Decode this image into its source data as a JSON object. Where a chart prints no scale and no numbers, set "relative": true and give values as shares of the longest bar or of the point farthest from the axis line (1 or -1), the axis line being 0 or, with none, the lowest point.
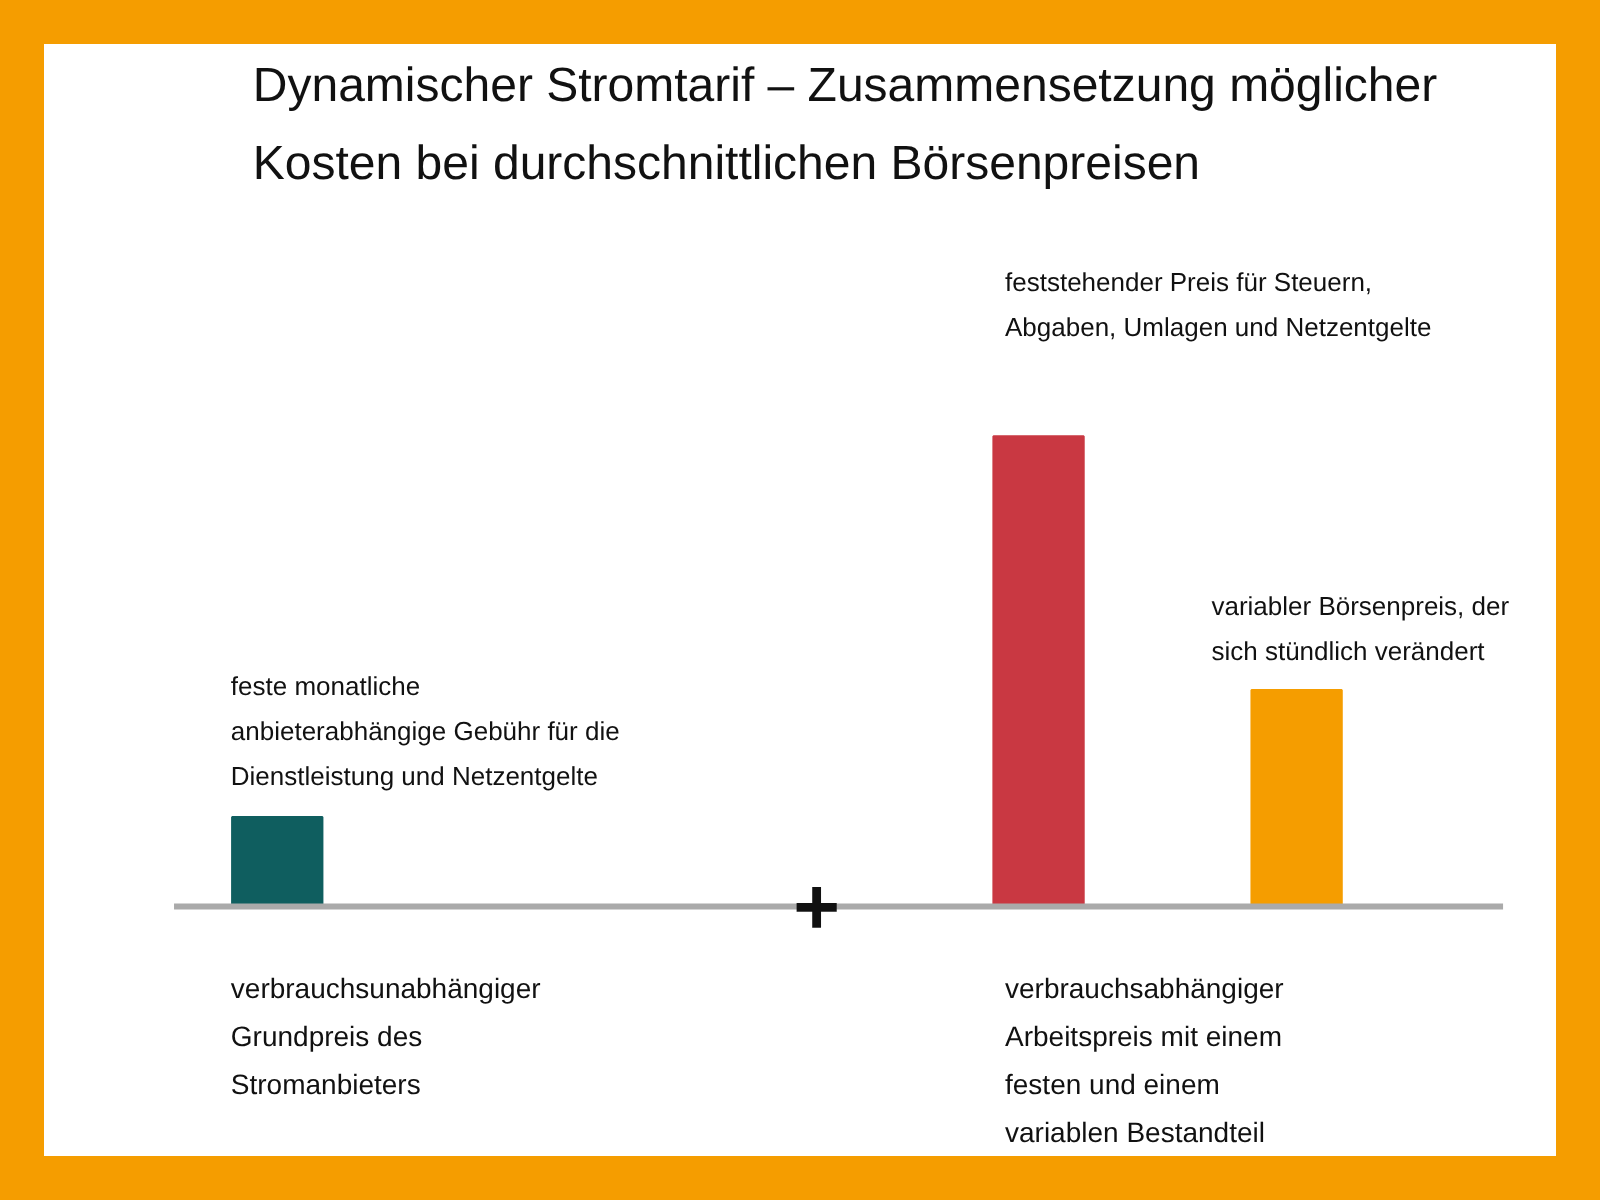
{
  "chart_data": {
    "type": "bar",
    "relative": true,
    "title": "Dynamischer Stromtarif – Zusammensetzung möglicher Kosten bei durchschnittlichen Börsenpreisen",
    "categories": [
      null,
      null,
      null
    ],
    "values": [
      0.19,
      1,
      0.46
    ],
    "colors": [
      "#0f5e5f",
      "#c93842",
      "#f59d00"
    ],
    "annotations": [
      "feste monatliche anbieterabhängige Gebühr für die Dienstleistung und Netzentgelte",
      "feststehender Preis für Steuern, Abgaben, Umlagen und Netzentgelte",
      "variabler Börsenpreis, der sich stündlich verändert",
      "verbrauchsunabhängiger Grundpreis des Stromanbieters",
      "verbrauchsabhängiger Arbeitspreis mit einem festen und einem variablen Bestandteil",
      "+"
    ],
    "grid": false
  }
}
